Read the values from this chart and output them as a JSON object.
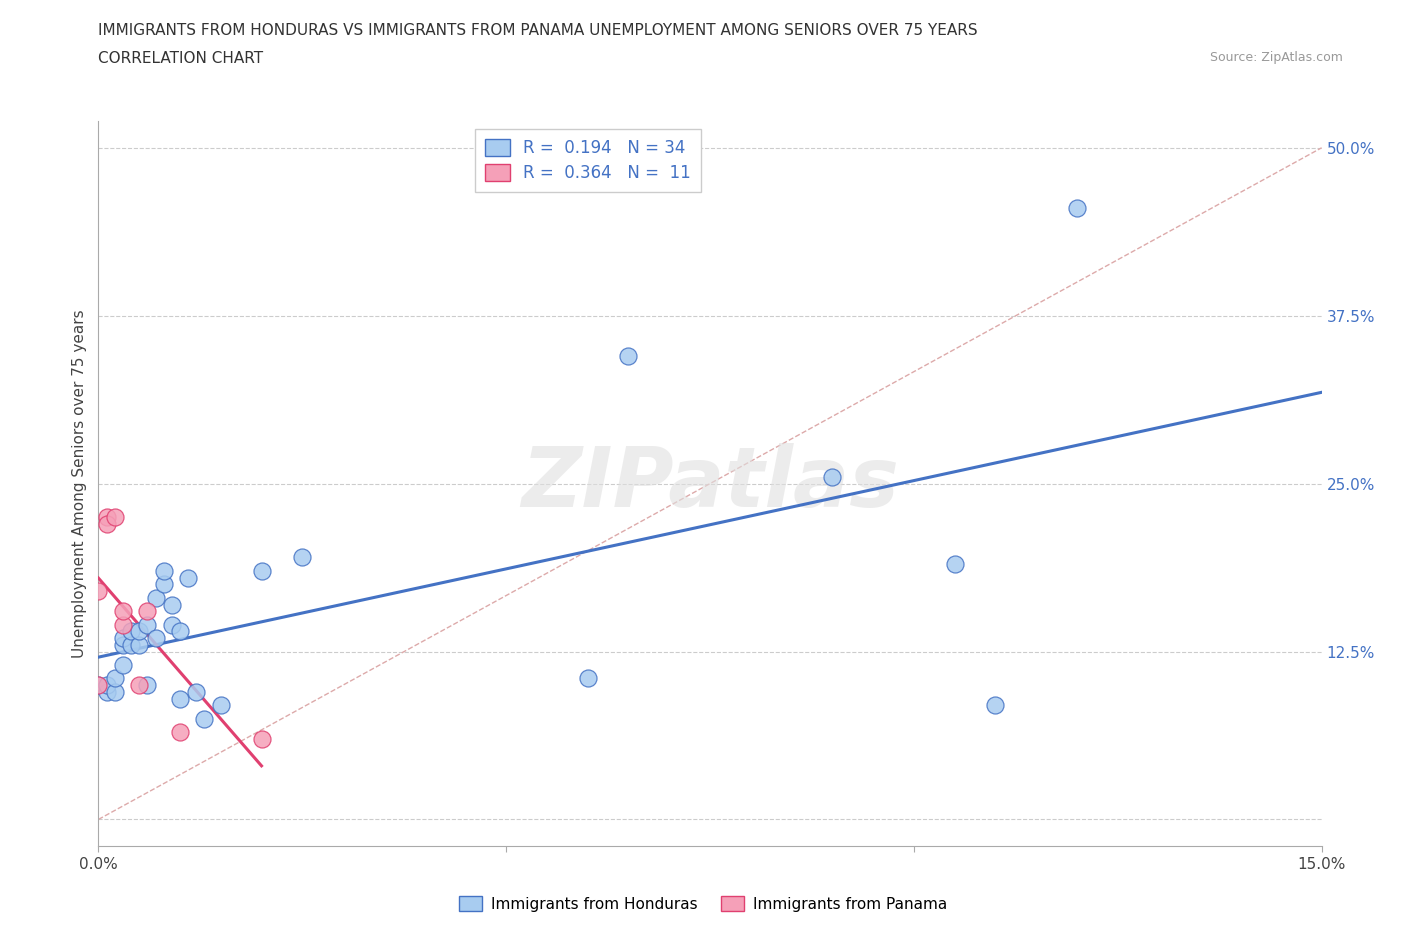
{
  "title_line1": "IMMIGRANTS FROM HONDURAS VS IMMIGRANTS FROM PANAMA UNEMPLOYMENT AMONG SENIORS OVER 75 YEARS",
  "title_line2": "CORRELATION CHART",
  "source": "Source: ZipAtlas.com",
  "ylabel": "Unemployment Among Seniors over 75 years",
  "xlim": [
    0.0,
    0.15
  ],
  "ylim": [
    -0.02,
    0.52
  ],
  "ytick_positions": [
    0.0,
    0.125,
    0.25,
    0.375,
    0.5
  ],
  "yticklabels": [
    "",
    "12.5%",
    "25.0%",
    "37.5%",
    "50.0%"
  ],
  "xtick_positions": [
    0.0,
    0.05,
    0.1,
    0.15
  ],
  "xticklabels": [
    "0.0%",
    "",
    "",
    "15.0%"
  ],
  "R_honduras": 0.194,
  "N_honduras": 34,
  "R_panama": 0.364,
  "N_panama": 11,
  "honduras_color": "#a8ccf0",
  "panama_color": "#f5a0b8",
  "trend_honduras": "#4472c4",
  "trend_panama": "#e04070",
  "diagonal_color": "#ddaaaa",
  "grid_color": "#cccccc",
  "watermark": "ZIPatlas",
  "honduras_x": [
    0.0,
    0.001,
    0.001,
    0.002,
    0.002,
    0.003,
    0.003,
    0.003,
    0.004,
    0.004,
    0.005,
    0.005,
    0.006,
    0.006,
    0.007,
    0.007,
    0.008,
    0.008,
    0.009,
    0.009,
    0.01,
    0.01,
    0.011,
    0.012,
    0.013,
    0.015,
    0.02,
    0.025,
    0.06,
    0.065,
    0.09,
    0.105,
    0.11,
    0.12
  ],
  "honduras_y": [
    0.1,
    0.095,
    0.1,
    0.095,
    0.105,
    0.115,
    0.13,
    0.135,
    0.13,
    0.14,
    0.13,
    0.14,
    0.145,
    0.1,
    0.135,
    0.165,
    0.175,
    0.185,
    0.145,
    0.16,
    0.14,
    0.09,
    0.18,
    0.095,
    0.075,
    0.085,
    0.185,
    0.195,
    0.105,
    0.345,
    0.255,
    0.19,
    0.085,
    0.455
  ],
  "panama_x": [
    0.0,
    0.0,
    0.001,
    0.001,
    0.002,
    0.003,
    0.003,
    0.005,
    0.006,
    0.01,
    0.02
  ],
  "panama_y": [
    0.1,
    0.17,
    0.225,
    0.22,
    0.225,
    0.145,
    0.155,
    0.1,
    0.155,
    0.065,
    0.06
  ]
}
